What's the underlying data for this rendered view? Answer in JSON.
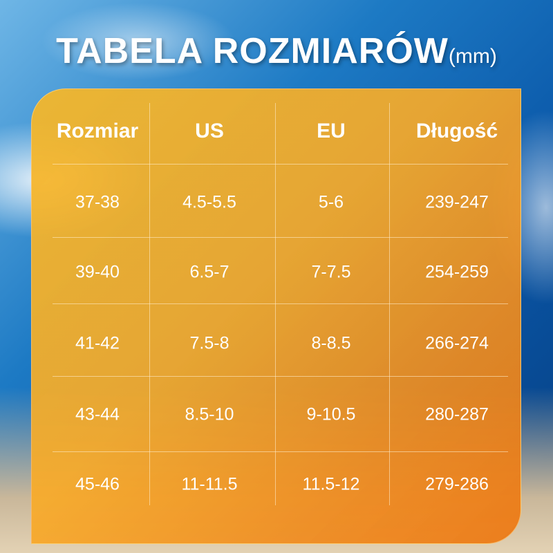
{
  "title": {
    "main": "TABELA ROZMIARÓW",
    "unit": "(mm)"
  },
  "table": {
    "headers": [
      "Rozmiar",
      "US",
      "EU",
      "Długość"
    ],
    "rows": [
      [
        "37-38",
        "4.5-5.5",
        "5-6",
        "239-247"
      ],
      [
        "39-40",
        "6.5-7",
        "7-7.5",
        "254-259"
      ],
      [
        "41-42",
        "7.5-8",
        "8-8.5",
        "266-274"
      ],
      [
        "43-44",
        "8.5-10",
        "9-10.5",
        "280-287"
      ],
      [
        "45-46",
        "11-11.5",
        "11.5-12",
        "279-286"
      ]
    ]
  },
  "colors": {
    "panel": "#f5a623",
    "sky": "#0a57a8",
    "text": "#ffffff"
  }
}
